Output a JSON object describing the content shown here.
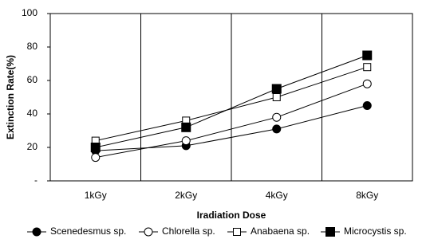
{
  "chart_data": {
    "type": "line",
    "x_label": "Iradiation Dose",
    "y_label": "Extinction Rate(%)",
    "categories": [
      "1kGy",
      "2kGy",
      "4kGy",
      "8kGy"
    ],
    "series": [
      {
        "name": "Scenedesmus sp.",
        "color": "#000000",
        "marker": "filled-circle",
        "values": [
          18,
          21,
          31,
          45
        ]
      },
      {
        "name": "Chlorella sp.",
        "color": "#000000",
        "marker": "open-circle",
        "values": [
          14,
          24,
          38,
          58
        ]
      },
      {
        "name": "Anabaena sp.",
        "color": "#000000",
        "marker": "open-square",
        "values": [
          24,
          36,
          50,
          68
        ]
      },
      {
        "name": "Microcystis sp.",
        "color": "#000000",
        "marker": "filled-square",
        "values": [
          20,
          32,
          55,
          75
        ]
      }
    ],
    "ylim": [
      0,
      100
    ],
    "yticks": [
      {
        "value": 0,
        "label": "-"
      },
      20,
      40,
      60,
      80,
      100
    ],
    "category_separators": true,
    "legend": "bottom"
  }
}
